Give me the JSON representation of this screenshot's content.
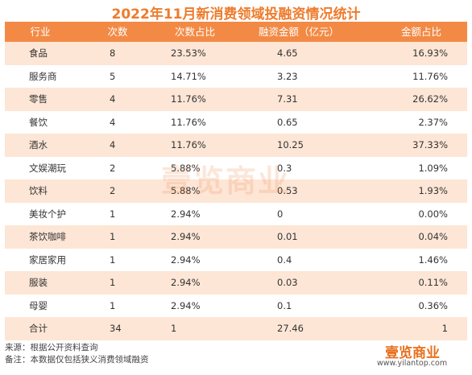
{
  "title": "2022年11月新消费领域投融资情况统计",
  "table": {
    "headers": [
      "行业",
      "次数",
      "次数占比",
      "融资金额（亿元）",
      "金额占比"
    ],
    "rows": [
      [
        "食品",
        "8",
        "23.53%",
        "4.65",
        "16.93%"
      ],
      [
        "服务商",
        "5",
        "14.71%",
        "3.23",
        "11.76%"
      ],
      [
        "零售",
        "4",
        "11.76%",
        "7.31",
        "26.62%"
      ],
      [
        "餐饮",
        "4",
        "11.76%",
        "0.65",
        "2.37%"
      ],
      [
        "酒水",
        "4",
        "11.76%",
        "10.25",
        "37.33%"
      ],
      [
        "文娱潮玩",
        "2",
        "5.88%",
        "0.3",
        "1.09%"
      ],
      [
        "饮料",
        "2",
        "5.88%",
        "0.53",
        "1.93%"
      ],
      [
        "美妆个护",
        "1",
        "2.94%",
        "0",
        "0.00%"
      ],
      [
        "茶饮咖啡",
        "1",
        "2.94%",
        "0.01",
        "0.04%"
      ],
      [
        "家居家用",
        "1",
        "2.94%",
        "0.4",
        "1.46%"
      ],
      [
        "服装",
        "1",
        "2.94%",
        "0.03",
        "0.11%"
      ],
      [
        "母婴",
        "1",
        "2.94%",
        "0.1",
        "0.36%"
      ],
      [
        "合计",
        "34",
        "1",
        "27.46",
        "1"
      ]
    ]
  },
  "footer": {
    "source": "来源：根据公开资料查询",
    "note": "备注：本数据仅包括狭义消费领域融资"
  },
  "watermark": "壹览商业",
  "logo": {
    "text": "壹览商业",
    "url": "www.yilantop.com"
  }
}
